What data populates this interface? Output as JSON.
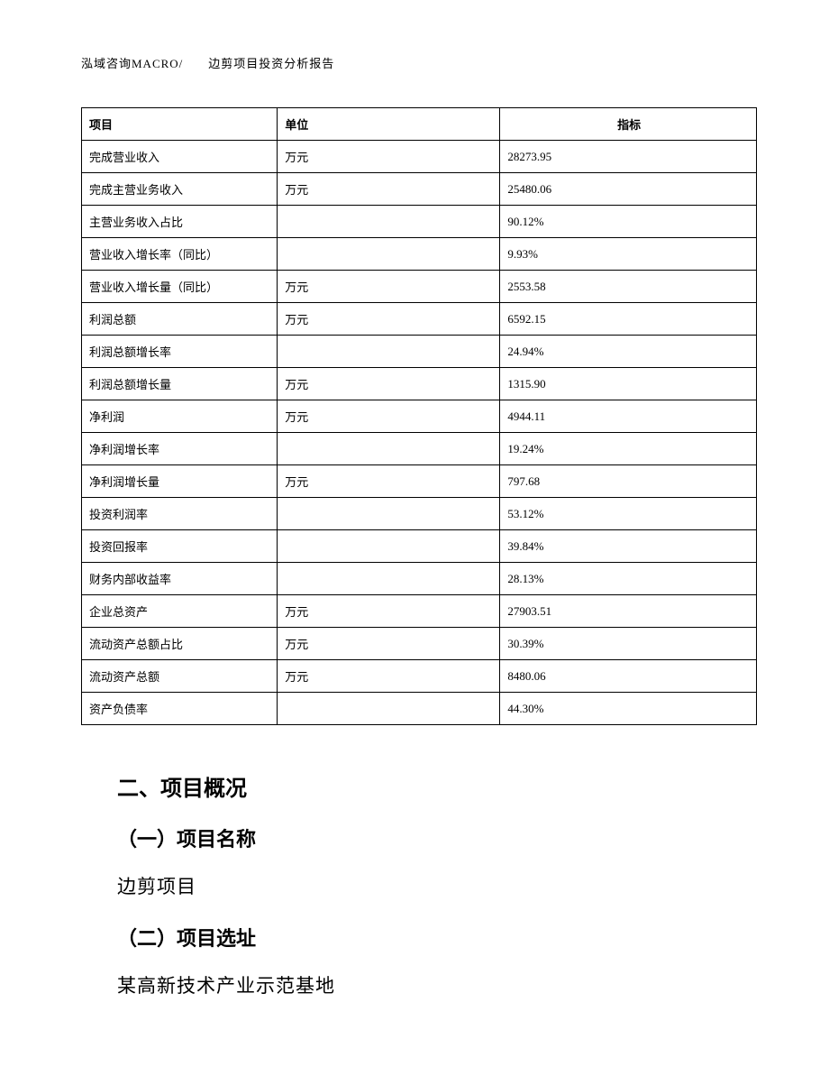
{
  "header": "泓域咨询MACRO/　　边剪项目投资分析报告",
  "table": {
    "columns": [
      "项目",
      "单位",
      "指标"
    ],
    "rows": [
      [
        "完成营业收入",
        "万元",
        "28273.95"
      ],
      [
        "完成主营业务收入",
        "万元",
        "25480.06"
      ],
      [
        "主营业务收入占比",
        "",
        "90.12%"
      ],
      [
        "营业收入增长率（同比）",
        "",
        "9.93%"
      ],
      [
        "营业收入增长量（同比）",
        "万元",
        "2553.58"
      ],
      [
        "利润总额",
        "万元",
        "6592.15"
      ],
      [
        "利润总额增长率",
        "",
        "24.94%"
      ],
      [
        "利润总额增长量",
        "万元",
        "1315.90"
      ],
      [
        "净利润",
        "万元",
        "4944.11"
      ],
      [
        "净利润增长率",
        "",
        "19.24%"
      ],
      [
        "净利润增长量",
        "万元",
        "797.68"
      ],
      [
        "投资利润率",
        "",
        "53.12%"
      ],
      [
        "投资回报率",
        "",
        "39.84%"
      ],
      [
        "财务内部收益率",
        "",
        "28.13%"
      ],
      [
        "企业总资产",
        "万元",
        "27903.51"
      ],
      [
        "流动资产总额占比",
        "万元",
        "30.39%"
      ],
      [
        "流动资产总额",
        "万元",
        "8480.06"
      ],
      [
        "资产负债率",
        "",
        "44.30%"
      ]
    ]
  },
  "sections": {
    "s2_title": "二、项目概况",
    "s2_1_title": "（一）项目名称",
    "s2_1_body": "边剪项目",
    "s2_2_title": "（二）项目选址",
    "s2_2_body": "某高新技术产业示范基地"
  }
}
